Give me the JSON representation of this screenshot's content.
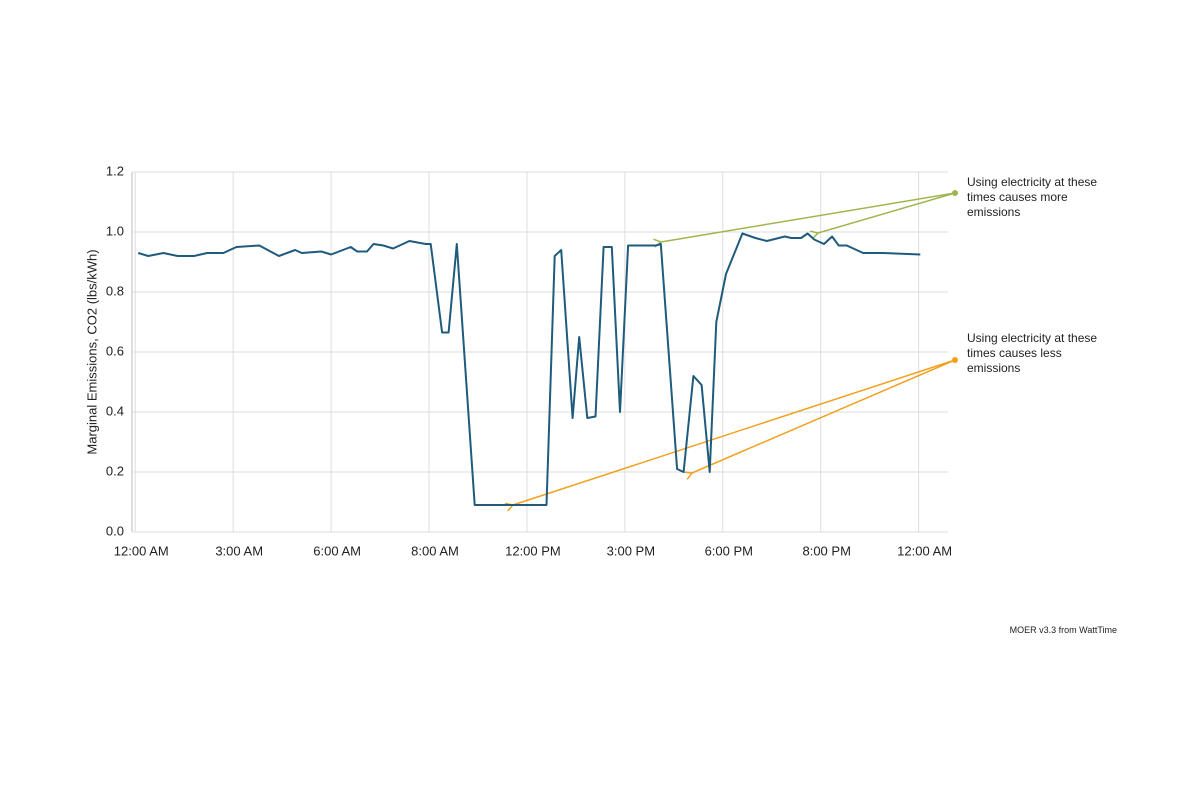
{
  "chart_data": {
    "type": "line",
    "y_label": "Marginal Emissions, CO2 (lbs/kWh)",
    "source": "MOER v3.3 from WattTime",
    "annotations": [
      {
        "lines": [
          "Using electricity at these",
          "times causes more",
          "emissions"
        ],
        "color": "#9fb54f"
      },
      {
        "lines": [
          "Using electricity at these",
          "times causes less",
          "emissions"
        ],
        "color": "#f1a11e"
      }
    ],
    "color": "#1f5b7d",
    "grid": true,
    "xlim": [
      -0.1,
      24.9
    ],
    "ylim": [
      0,
      1.2
    ],
    "xticks": [
      {
        "value": 0,
        "label": "12:00 AM"
      },
      {
        "value": 3,
        "label": "3:00 AM"
      },
      {
        "value": 6,
        "label": "6:00 AM"
      },
      {
        "value": 9,
        "label": "8:00 AM"
      },
      {
        "value": 12,
        "label": "12:00 PM"
      },
      {
        "value": 15,
        "label": "3:00 PM"
      },
      {
        "value": 18,
        "label": "6:00 PM"
      },
      {
        "value": 21,
        "label": "8:00 PM"
      },
      {
        "value": 24,
        "label": "12:00 AM"
      }
    ],
    "yticks": [
      {
        "value": 0,
        "label": "0.0"
      },
      0.2,
      0.4,
      0.6,
      0.8,
      {
        "value": 1,
        "label": "1.0"
      },
      1.2
    ],
    "x": [
      0.09,
      0.4,
      0.86,
      1.3,
      1.8,
      2.2,
      2.7,
      3.1,
      3.8,
      4.4,
      4.9,
      5.1,
      5.7,
      6.0,
      6.6,
      6.8,
      7.1,
      7.3,
      7.6,
      7.9,
      8.4,
      8.9,
      9.05,
      9.4,
      9.6,
      9.85,
      10.4,
      10.7,
      12.6,
      12.85,
      13.05,
      13.4,
      13.6,
      13.85,
      14.1,
      14.35,
      14.6,
      14.85,
      15.1,
      15.95,
      16.1,
      16.6,
      16.8,
      17.1,
      17.35,
      17.6,
      17.8,
      18.1,
      18.6,
      19.0,
      19.35,
      19.9,
      20.1,
      20.4,
      20.6,
      20.8,
      21.1,
      21.35,
      21.55,
      21.8,
      22.3,
      22.9,
      24.05
    ],
    "values": [
      0.93,
      0.92,
      0.93,
      0.92,
      0.92,
      0.93,
      0.93,
      0.95,
      0.955,
      0.92,
      0.94,
      0.93,
      0.935,
      0.925,
      0.95,
      0.935,
      0.935,
      0.96,
      0.955,
      0.945,
      0.97,
      0.96,
      0.96,
      0.665,
      0.665,
      0.96,
      0.09,
      0.09,
      0.09,
      0.92,
      0.94,
      0.38,
      0.65,
      0.38,
      0.385,
      0.95,
      0.95,
      0.4,
      0.955,
      0.955,
      0.96,
      0.21,
      0.2,
      0.52,
      0.49,
      0.2,
      0.7,
      0.86,
      0.995,
      0.98,
      0.97,
      0.985,
      0.98,
      0.98,
      0.995,
      0.975,
      0.96,
      0.985,
      0.955,
      0.955,
      0.93,
      0.93,
      0.925
    ]
  }
}
